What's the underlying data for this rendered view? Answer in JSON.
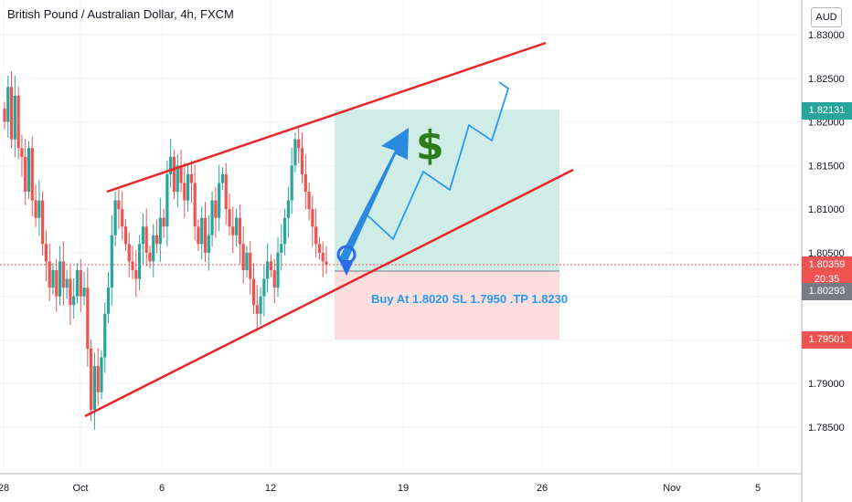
{
  "header": {
    "title": "British Pound / Australian Dollar, 4h, FXCM"
  },
  "price_axis": {
    "currency": "AUD",
    "labels": [
      "1.83000",
      "1.82500",
      "1.82000",
      "1.81500",
      "1.81000",
      "1.80500",
      "1.80000",
      "1.79500",
      "1.79000",
      "1.78500"
    ]
  },
  "time_axis": {
    "labels": [
      "28",
      "Oct",
      "6",
      "12",
      "19",
      "26",
      "Nov",
      "5"
    ]
  },
  "price_tags": [
    {
      "text": "1.82131",
      "price": 1.82131,
      "color": "#26a69a"
    },
    {
      "text": "1.80359",
      "price": 1.80359,
      "color": "#ef5350"
    },
    {
      "text": "20:35",
      "price": 1.80195,
      "color": "#ef5350"
    },
    {
      "text": "1.80293",
      "price": 1.80055,
      "color": "#787b86"
    },
    {
      "text": "1.79501",
      "price": 1.79501,
      "color": "#ef5350"
    }
  ],
  "annotation": {
    "trade_note": "Buy At 1.8020 SL 1.7950 .TP 1.8230",
    "dollar_sign": "$"
  },
  "colors": {
    "up": "#26a69a",
    "down": "#ef5350",
    "channel": "#e8262a",
    "arrow": "#2a8ae0",
    "target_zone": "#cdebe6",
    "stop_zone": "#fcdcdc"
  },
  "chart_data": {
    "type": "candlestick",
    "symbol": "GBPAUD",
    "timeframe": "4h",
    "ylim": [
      1.782,
      1.831
    ],
    "grid": true,
    "channel_lines": [
      {
        "from": [
          "2020-10-02",
          1.812
        ],
        "to": [
          "2020-10-26",
          1.829
        ]
      },
      {
        "from": [
          "2020-10-01",
          1.7862
        ],
        "to": [
          "2020-10-27",
          1.8134
        ]
      }
    ],
    "position": {
      "entry": 1.802,
      "stop_loss": 1.795,
      "take_profit": 1.823
    },
    "close_series": [
      1.82,
      1.824,
      1.818,
      1.823,
      1.817,
      1.816,
      1.812,
      1.817,
      1.811,
      1.809,
      1.811,
      1.806,
      1.804,
      1.801,
      1.803,
      1.8,
      1.804,
      1.801,
      1.802,
      1.799,
      1.8,
      1.803,
      1.8,
      1.801,
      1.794,
      1.787,
      1.792,
      1.789,
      1.793,
      1.798,
      1.801,
      1.807,
      1.811,
      1.81,
      1.808,
      1.806,
      1.804,
      1.803,
      1.802,
      1.806,
      1.808,
      1.805,
      1.804,
      1.807,
      1.806,
      1.809,
      1.808,
      1.814,
      1.816,
      1.812,
      1.815,
      1.813,
      1.811,
      1.814,
      1.813,
      1.808,
      1.806,
      1.809,
      1.805,
      1.807,
      1.811,
      1.809,
      1.813,
      1.814,
      1.81,
      1.808,
      1.807,
      1.809,
      1.806,
      1.803,
      1.805,
      1.802,
      1.799,
      1.798,
      1.8,
      1.802,
      1.804,
      1.803,
      1.801,
      1.805,
      1.806,
      1.809,
      1.811,
      1.815,
      1.818,
      1.817,
      1.814,
      1.812,
      1.81,
      1.808,
      1.806,
      1.805,
      1.804,
      1.8036
    ]
  }
}
